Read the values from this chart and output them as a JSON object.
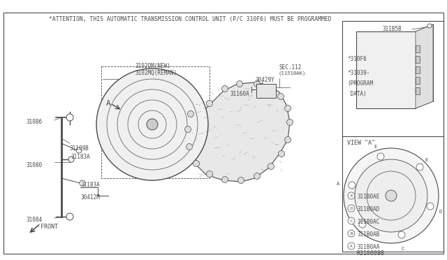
{
  "bg_color": "#ffffff",
  "line_color": "#4a4a4a",
  "title": "*ATTENTION, THIS AUTOMATIC TRANSMISSION CONTROL UNIT (P/C 310F6) MUST BE PROGRAMMED",
  "ref": "R3100098",
  "legend": [
    [
      "A",
      "311B0AA"
    ],
    [
      "B",
      "311B0AB"
    ],
    [
      "C",
      "311B0AC"
    ],
    [
      "D",
      "311B0AD"
    ],
    [
      "E",
      "311B0AE"
    ]
  ],
  "figsize": [
    6.4,
    3.72
  ],
  "dpi": 100
}
